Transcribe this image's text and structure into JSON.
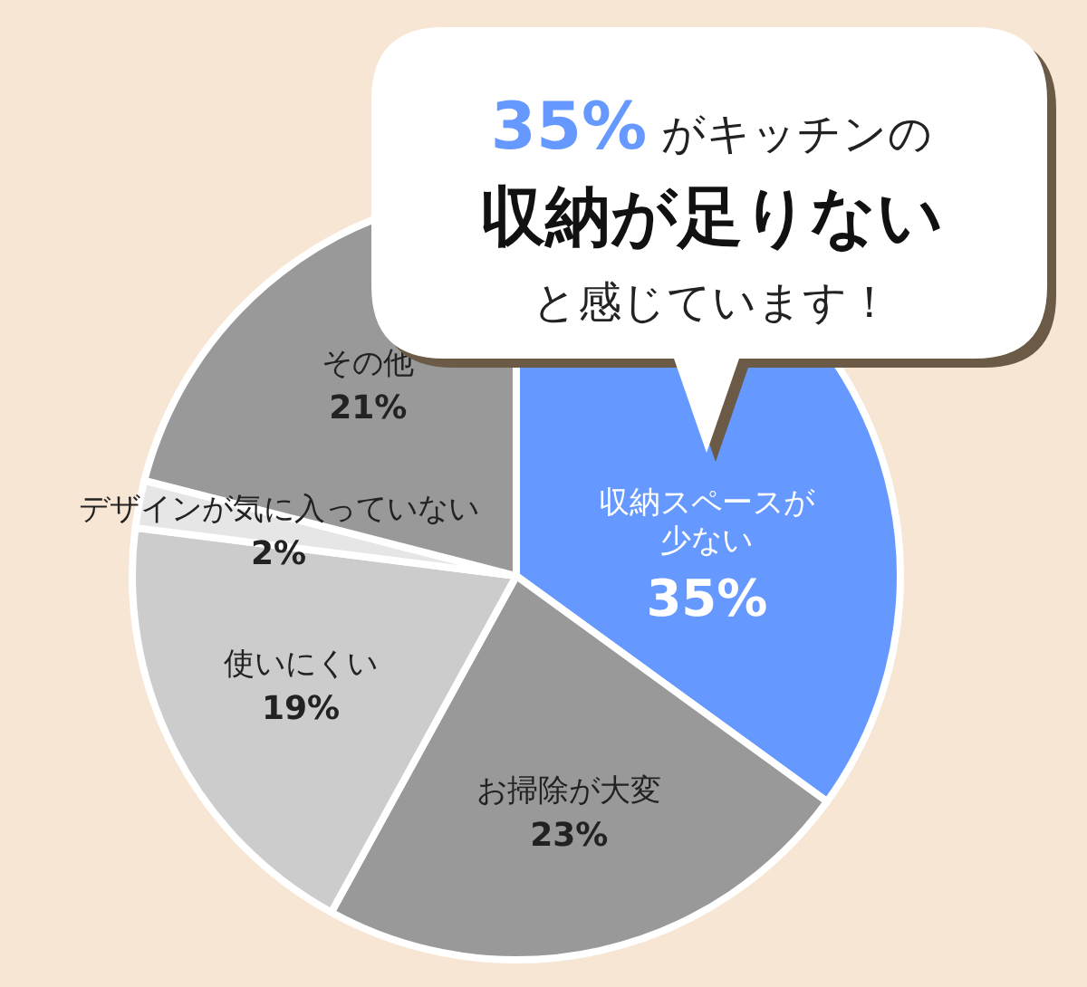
{
  "chart_data": {
    "type": "pie",
    "categories": [
      "収納スペースが少ない",
      "お掃除が大変",
      "使いにくい",
      "デザインが気に入っていない",
      "その他"
    ],
    "values": [
      35,
      23,
      19,
      2,
      21
    ],
    "colors": [
      "#6699ff",
      "#999999",
      "#cccccc",
      "#e6e6e6",
      "#999999"
    ],
    "value_labels": [
      "35%",
      "23%",
      "19%",
      "2%",
      "21%"
    ],
    "annotations": [
      "35%",
      "がキッチンの",
      "収納が足りない",
      "と感じています！"
    ]
  }
}
